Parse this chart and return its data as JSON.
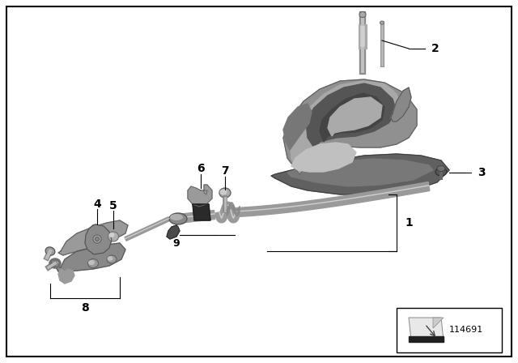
{
  "background_color": "#ffffff",
  "border_color": "#000000",
  "part_number": "114691",
  "text_color": "#000000",
  "label_fontsize": 10,
  "label_fontweight": "bold",
  "gray_light": "#b8b8b8",
  "gray_mid": "#8a8a8a",
  "gray_dark": "#5a5a5a",
  "gray_vdark": "#2a2a2a",
  "gray_blue": "#9aabba",
  "silver": "#c8c8c8",
  "shifter_base_color": "#606060",
  "shifter_body_color": "#888888",
  "shifter_detail_color": "#707070",
  "cable_color": "#aaaaaa",
  "cable_outline": "#777777"
}
